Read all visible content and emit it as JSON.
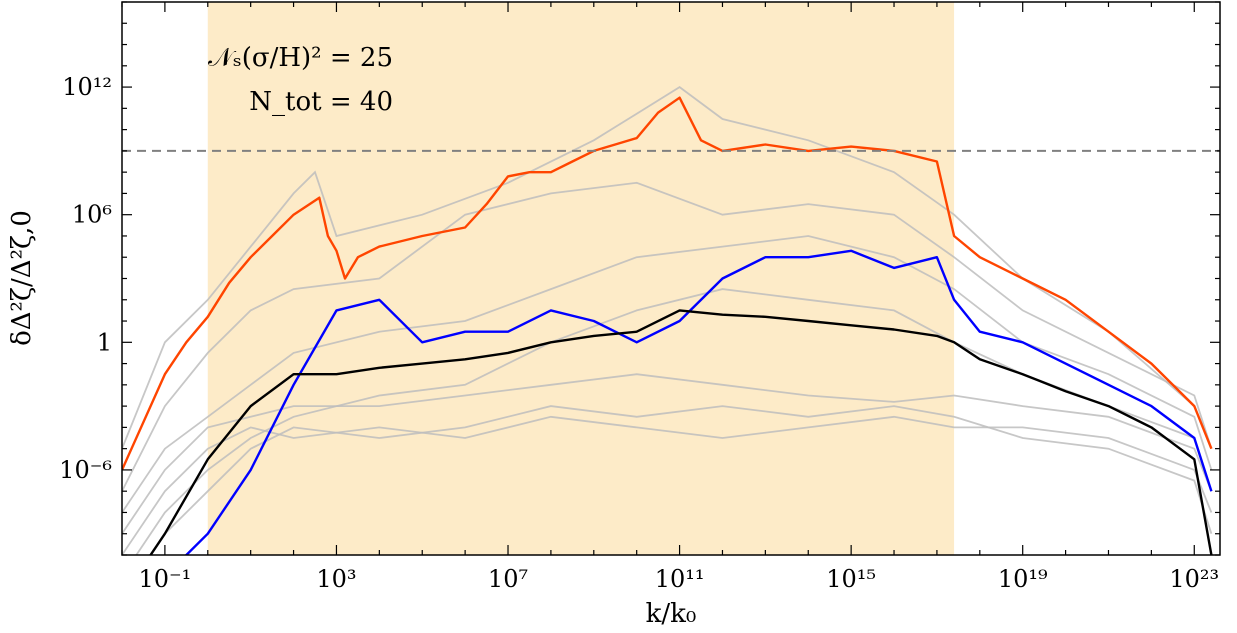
{
  "chart_data": {
    "type": "line",
    "xlabel": "k/k₀",
    "ylabel": "δΔ²ζ/Δ²ζ,0",
    "x_scale": "log",
    "y_scale": "log",
    "xlim_log10": [
      -2,
      23.6
    ],
    "ylim_log10": [
      -10,
      16
    ],
    "x_ticks": [
      {
        "exp": -1,
        "label": "10⁻¹"
      },
      {
        "exp": 3,
        "label": "10³"
      },
      {
        "exp": 7,
        "label": "10⁷"
      },
      {
        "exp": 11,
        "label": "10¹¹"
      },
      {
        "exp": 15,
        "label": "10¹⁵"
      },
      {
        "exp": 19,
        "label": "10¹⁹"
      },
      {
        "exp": 23,
        "label": "10²³"
      }
    ],
    "y_ticks": [
      {
        "exp": -6,
        "label": "10⁻⁶"
      },
      {
        "exp": 0,
        "label": "1"
      },
      {
        "exp": 6,
        "label": "10⁶"
      },
      {
        "exp": 12,
        "label": "10¹²"
      }
    ],
    "shaded_region_log10": [
      0,
      17.4
    ],
    "shaded_color": "#fdebc8",
    "threshold_log10": 9,
    "threshold_color": "#808080",
    "annotation_lines": [
      "𝒩ₛ(σ/H)²  =  25",
      "N_tot  =  40"
    ],
    "series": [
      {
        "color": "#ff4500",
        "points": [
          [
            -2,
            -6
          ],
          [
            -1,
            -1.5
          ],
          [
            -0.5,
            0
          ],
          [
            0,
            1.2
          ],
          [
            0.5,
            2.8
          ],
          [
            1,
            4
          ],
          [
            1.5,
            5
          ],
          [
            2,
            6
          ],
          [
            2.6,
            6.8
          ],
          [
            2.8,
            5
          ],
          [
            3,
            4.3
          ],
          [
            3.2,
            3
          ],
          [
            3.5,
            4
          ],
          [
            4,
            4.5
          ],
          [
            5,
            5
          ],
          [
            6,
            5.4
          ],
          [
            6.5,
            6.5
          ],
          [
            7,
            7.8
          ],
          [
            7.5,
            8
          ],
          [
            8,
            8
          ],
          [
            8.5,
            8.5
          ],
          [
            9,
            9
          ],
          [
            9.5,
            9.3
          ],
          [
            10,
            9.6
          ],
          [
            10.5,
            10.8
          ],
          [
            11,
            11.5
          ],
          [
            11.5,
            9.5
          ],
          [
            12,
            9
          ],
          [
            13,
            9.3
          ],
          [
            14,
            9
          ],
          [
            15,
            9.2
          ],
          [
            16,
            9
          ],
          [
            17,
            8.5
          ],
          [
            17.4,
            5
          ],
          [
            18,
            4
          ],
          [
            19,
            3
          ],
          [
            20,
            2
          ],
          [
            21,
            0.5
          ],
          [
            22,
            -1
          ],
          [
            23,
            -3
          ],
          [
            23.4,
            -5
          ]
        ]
      },
      {
        "color": "#0000ff",
        "points": [
          [
            -2,
            -13
          ],
          [
            -1,
            -11
          ],
          [
            0,
            -9
          ],
          [
            1,
            -6
          ],
          [
            2,
            -2
          ],
          [
            3,
            1.5
          ],
          [
            4,
            2
          ],
          [
            5,
            0
          ],
          [
            6,
            0.5
          ],
          [
            7,
            0.5
          ],
          [
            8,
            1.5
          ],
          [
            9,
            1
          ],
          [
            10,
            0
          ],
          [
            11,
            1
          ],
          [
            12,
            3
          ],
          [
            13,
            4
          ],
          [
            14,
            4
          ],
          [
            15,
            4.3
          ],
          [
            16,
            3.5
          ],
          [
            17,
            4
          ],
          [
            17.4,
            2
          ],
          [
            18,
            0.5
          ],
          [
            19,
            0
          ],
          [
            20,
            -1
          ],
          [
            21,
            -2
          ],
          [
            22,
            -3
          ],
          [
            23,
            -4.5
          ],
          [
            23.4,
            -7
          ]
        ]
      },
      {
        "color": "#000000",
        "points": [
          [
            -2,
            -12
          ],
          [
            -1,
            -9
          ],
          [
            0,
            -5.5
          ],
          [
            1,
            -3
          ],
          [
            2,
            -1.5
          ],
          [
            3,
            -1.5
          ],
          [
            4,
            -1.2
          ],
          [
            5,
            -1
          ],
          [
            6,
            -0.8
          ],
          [
            7,
            -0.5
          ],
          [
            8,
            0
          ],
          [
            9,
            0.3
          ],
          [
            10,
            0.5
          ],
          [
            11,
            1.5
          ],
          [
            12,
            1.3
          ],
          [
            13,
            1.2
          ],
          [
            14,
            1.0
          ],
          [
            15,
            0.8
          ],
          [
            16,
            0.6
          ],
          [
            17,
            0.3
          ],
          [
            17.4,
            0
          ],
          [
            18,
            -0.8
          ],
          [
            19,
            -1.5
          ],
          [
            20,
            -2.3
          ],
          [
            21,
            -3
          ],
          [
            22,
            -4
          ],
          [
            23,
            -5.5
          ],
          [
            23.4,
            -10
          ]
        ]
      }
    ],
    "background_series": [
      {
        "color": "#bdbdbd",
        "points": [
          [
            -2,
            -5
          ],
          [
            -1,
            0
          ],
          [
            0,
            2
          ],
          [
            1,
            4.5
          ],
          [
            2,
            7
          ],
          [
            2.5,
            8
          ],
          [
            3,
            5
          ],
          [
            5,
            6
          ],
          [
            7,
            7.5
          ],
          [
            9,
            9.5
          ],
          [
            11,
            12
          ],
          [
            12,
            10.5
          ],
          [
            14,
            9.5
          ],
          [
            16,
            8
          ],
          [
            17.4,
            6
          ],
          [
            19,
            3
          ],
          [
            21,
            0.5
          ],
          [
            23,
            -3
          ],
          [
            23.4,
            -5
          ]
        ]
      },
      {
        "color": "#bdbdbd",
        "points": [
          [
            -2,
            -7
          ],
          [
            -1,
            -3
          ],
          [
            0,
            -0.5
          ],
          [
            1,
            1.5
          ],
          [
            2,
            2.5
          ],
          [
            4,
            3
          ],
          [
            6,
            6
          ],
          [
            8,
            7
          ],
          [
            10,
            7.5
          ],
          [
            12,
            6
          ],
          [
            14,
            6.5
          ],
          [
            16,
            6
          ],
          [
            17.4,
            4
          ],
          [
            19,
            1.5
          ],
          [
            21,
            -0.5
          ],
          [
            23,
            -2.5
          ],
          [
            23.4,
            -5
          ]
        ]
      },
      {
        "color": "#bdbdbd",
        "points": [
          [
            -2,
            -8
          ],
          [
            -1,
            -5
          ],
          [
            0,
            -3.5
          ],
          [
            1,
            -2
          ],
          [
            2,
            -0.5
          ],
          [
            4,
            0.5
          ],
          [
            6,
            1
          ],
          [
            8,
            2.5
          ],
          [
            10,
            4
          ],
          [
            12,
            4.5
          ],
          [
            14,
            5
          ],
          [
            16,
            4
          ],
          [
            17.4,
            2.5
          ],
          [
            19,
            0
          ],
          [
            21,
            -1.5
          ],
          [
            23,
            -3.5
          ],
          [
            23.4,
            -6
          ]
        ]
      },
      {
        "color": "#bdbdbd",
        "points": [
          [
            -2,
            -9
          ],
          [
            -1,
            -6
          ],
          [
            0,
            -4
          ],
          [
            1,
            -3.5
          ],
          [
            2,
            -3
          ],
          [
            4,
            -3
          ],
          [
            6,
            -2.5
          ],
          [
            8,
            -2
          ],
          [
            10,
            -1.5
          ],
          [
            12,
            -2
          ],
          [
            14,
            -2.5
          ],
          [
            16,
            -2.8
          ],
          [
            17.4,
            -2.5
          ],
          [
            19,
            -3
          ],
          [
            21,
            -3.5
          ],
          [
            23,
            -5
          ],
          [
            23.4,
            -7
          ]
        ]
      },
      {
        "color": "#bdbdbd",
        "points": [
          [
            -2,
            -10
          ],
          [
            -1,
            -7
          ],
          [
            0,
            -5
          ],
          [
            1,
            -4
          ],
          [
            2,
            -4.5
          ],
          [
            4,
            -4
          ],
          [
            6,
            -4.5
          ],
          [
            8,
            -3.5
          ],
          [
            10,
            -4
          ],
          [
            12,
            -4.5
          ],
          [
            14,
            -4
          ],
          [
            16,
            -3.5
          ],
          [
            17.4,
            -4
          ],
          [
            19,
            -4
          ],
          [
            21,
            -4.5
          ],
          [
            23,
            -6
          ],
          [
            23.4,
            -8
          ]
        ]
      },
      {
        "color": "#bdbdbd",
        "points": [
          [
            -2,
            -11
          ],
          [
            -1,
            -8
          ],
          [
            0,
            -6
          ],
          [
            1,
            -4.5
          ],
          [
            2,
            -3.5
          ],
          [
            4,
            -2.5
          ],
          [
            6,
            -2
          ],
          [
            8,
            0
          ],
          [
            10,
            1.5
          ],
          [
            12,
            2.5
          ],
          [
            14,
            2
          ],
          [
            16,
            1.5
          ],
          [
            17.4,
            0
          ],
          [
            19,
            -1.5
          ],
          [
            21,
            -3
          ],
          [
            23,
            -4.5
          ],
          [
            23.4,
            -7
          ]
        ]
      },
      {
        "color": "#bdbdbd",
        "points": [
          [
            -2,
            -12
          ],
          [
            -1,
            -9
          ],
          [
            0,
            -7
          ],
          [
            1,
            -5
          ],
          [
            2,
            -4
          ],
          [
            4,
            -4.5
          ],
          [
            6,
            -4
          ],
          [
            8,
            -3
          ],
          [
            10,
            -3.5
          ],
          [
            12,
            -3
          ],
          [
            14,
            -3.5
          ],
          [
            16,
            -3
          ],
          [
            17.4,
            -3.5
          ],
          [
            19,
            -4.5
          ],
          [
            21,
            -5
          ],
          [
            23,
            -6.5
          ],
          [
            23.4,
            -9
          ]
        ]
      }
    ]
  }
}
